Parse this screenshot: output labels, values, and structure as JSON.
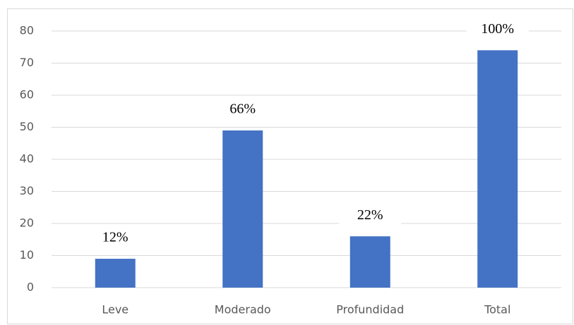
{
  "chart_data": {
    "type": "bar",
    "categories": [
      "Leve",
      "Moderado",
      "Profundidad",
      "Total"
    ],
    "values": [
      9,
      49,
      16,
      74
    ],
    "annotations": [
      "12%",
      "66%",
      "22%",
      "100%"
    ],
    "color": "#4472c4",
    "ylim": [
      0,
      80
    ],
    "yticks": [
      0,
      10,
      20,
      30,
      40,
      50,
      60,
      70,
      80
    ],
    "grid": true
  }
}
